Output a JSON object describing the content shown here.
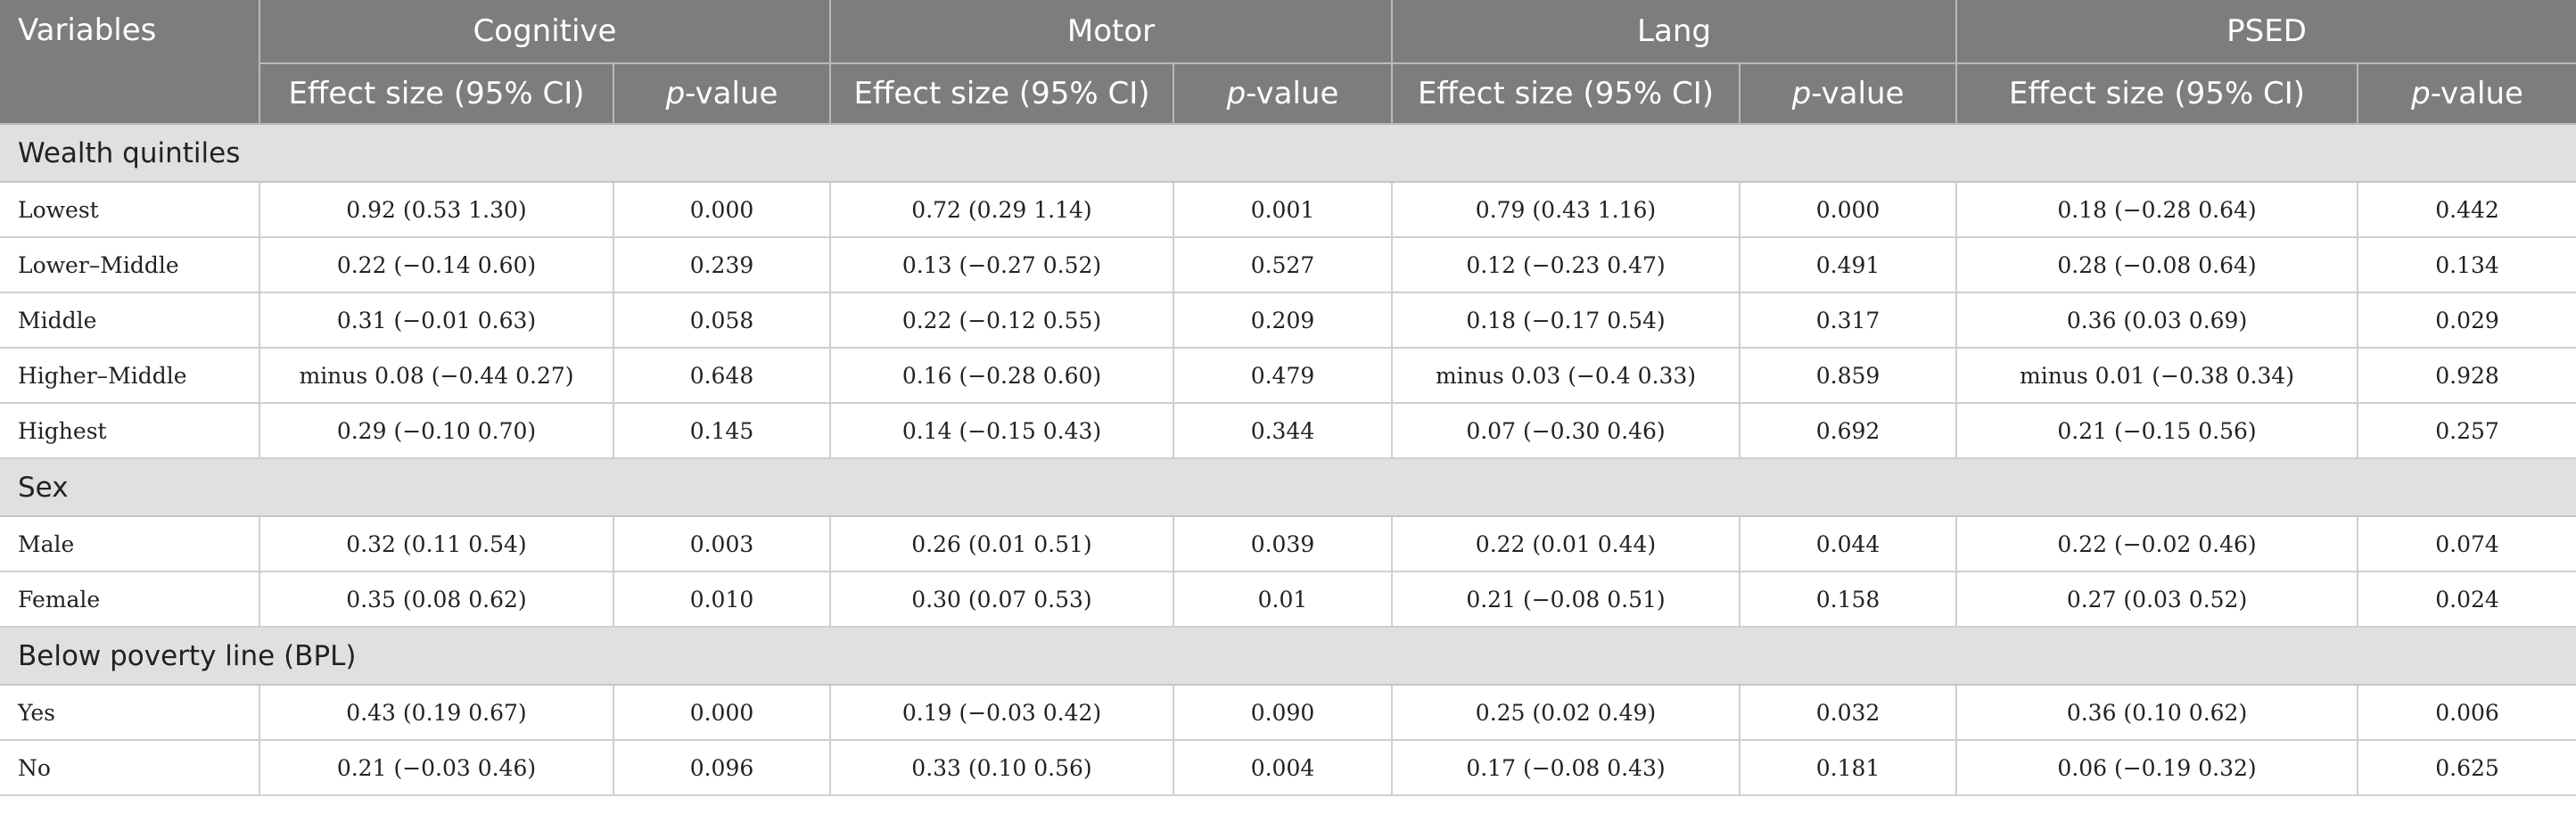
{
  "header": {
    "variables_label": "Variables",
    "groups": [
      "Cognitive",
      "Motor",
      "Lang",
      "PSED"
    ],
    "effect_label": "Effect size (95% CI)",
    "p_italic": "p",
    "p_rest": "-value"
  },
  "sections": [
    {
      "title": "Wealth quintiles",
      "rows": [
        {
          "label": "Lowest",
          "cells": [
            "0.92 (0.53 1.30)",
            "0.000",
            "0.72 (0.29 1.14)",
            "0.001",
            "0.79 (0.43 1.16)",
            "0.000",
            "0.18 (−0.28 0.64)",
            "0.442"
          ]
        },
        {
          "label": "Lower–Middle",
          "cells": [
            "0.22 (−0.14 0.60)",
            "0.239",
            "0.13 (−0.27 0.52)",
            "0.527",
            "0.12 (−0.23 0.47)",
            "0.491",
            "0.28 (−0.08 0.64)",
            "0.134"
          ]
        },
        {
          "label": "Middle",
          "cells": [
            "0.31 (−0.01 0.63)",
            "0.058",
            "0.22 (−0.12 0.55)",
            "0.209",
            "0.18 (−0.17 0.54)",
            "0.317",
            "0.36 (0.03 0.69)",
            "0.029"
          ]
        },
        {
          "label": "Higher–Middle",
          "cells": [
            "minus 0.08 (−0.44 0.27)",
            "0.648",
            "0.16 (−0.28 0.60)",
            "0.479",
            "minus 0.03 (−0.4 0.33)",
            "0.859",
            "minus 0.01 (−0.38 0.34)",
            "0.928"
          ]
        },
        {
          "label": "Highest",
          "cells": [
            "0.29 (−0.10 0.70)",
            "0.145",
            "0.14 (−0.15 0.43)",
            "0.344",
            "0.07 (−0.30 0.46)",
            "0.692",
            "0.21 (−0.15 0.56)",
            "0.257"
          ]
        }
      ]
    },
    {
      "title": "Sex",
      "rows": [
        {
          "label": "Male",
          "cells": [
            "0.32 (0.11 0.54)",
            "0.003",
            "0.26 (0.01 0.51)",
            "0.039",
            "0.22 (0.01 0.44)",
            "0.044",
            "0.22 (−0.02 0.46)",
            "0.074"
          ]
        },
        {
          "label": "Female",
          "cells": [
            "0.35 (0.08 0.62)",
            "0.010",
            "0.30 (0.07 0.53)",
            "0.01",
            "0.21 (−0.08 0.51)",
            "0.158",
            "0.27 (0.03 0.52)",
            "0.024"
          ]
        }
      ]
    },
    {
      "title": "Below poverty line (BPL)",
      "rows": [
        {
          "label": "Yes",
          "cells": [
            "0.43 (0.19 0.67)",
            "0.000",
            "0.19 (−0.03 0.42)",
            "0.090",
            "0.25 (0.02 0.49)",
            "0.032",
            "0.36 (0.10 0.62)",
            "0.006"
          ]
        },
        {
          "label": "No",
          "cells": [
            "0.21 (−0.03 0.46)",
            "0.096",
            "0.33 (0.10 0.56)",
            "0.004",
            "0.17 (−0.08 0.43)",
            "0.181",
            "0.06 (−0.19 0.32)",
            "0.625"
          ]
        }
      ]
    }
  ],
  "colors": {
    "header_bg": "#7d7e7c",
    "header_text": "#ffffff",
    "section_bg": "#e0e0e0",
    "grid_line": "#cfcfcf"
  }
}
